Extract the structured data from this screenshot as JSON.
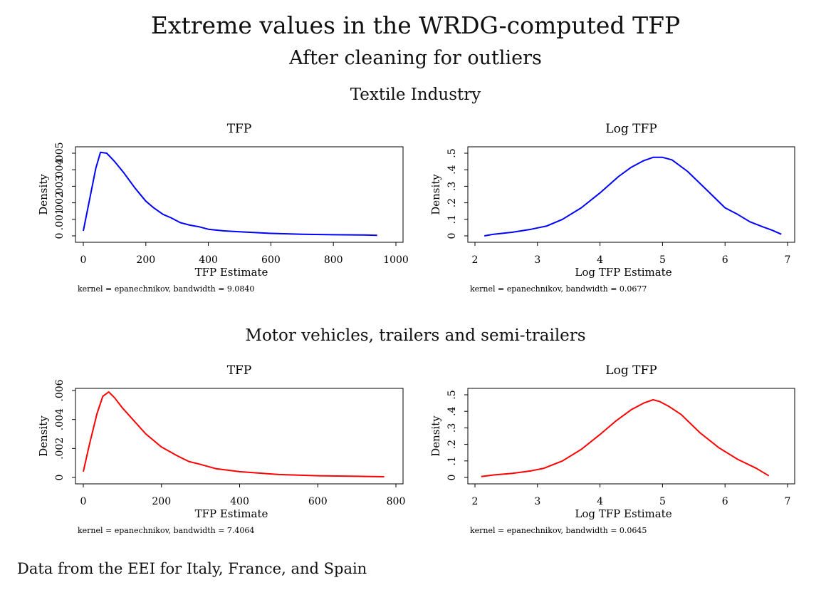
{
  "figure": {
    "title": "Extreme values in the WRDG-computed TFP",
    "subtitle": "After cleaning for outliers",
    "note": "Data from the EEI for Italy, France, and Spain"
  },
  "sections": [
    {
      "title": "Textile Industry"
    },
    {
      "title": "Motor vehicles, trailers and semi-trailers"
    }
  ],
  "chart_data": [
    {
      "type": "line",
      "section": "Textile Industry",
      "title": "TFP",
      "xlabel": "TFP Estimate",
      "ylabel": "Density",
      "note": "kernel = epanechnikov, bandwidth = 9.0840",
      "color": "#0000ff",
      "xlim": [
        0,
        1000
      ],
      "ylim": [
        0,
        0.005
      ],
      "xticks": [
        0,
        200,
        400,
        600,
        800,
        1000
      ],
      "xtick_labels": [
        "0",
        "200",
        "400",
        "600",
        "800",
        "1000"
      ],
      "yticks": [
        0,
        0.001,
        0.002,
        0.003,
        0.004,
        0.005
      ],
      "ytick_labels": [
        "0",
        ".001",
        ".002",
        ".003",
        ".004",
        ".005"
      ],
      "x": [
        0,
        40,
        55,
        75,
        100,
        130,
        165,
        200,
        225,
        255,
        280,
        310,
        340,
        370,
        400,
        450,
        500,
        550,
        600,
        700,
        800,
        900,
        940
      ],
      "y": [
        0.0003,
        0.0041,
        0.00505,
        0.005,
        0.0045,
        0.0038,
        0.0029,
        0.0021,
        0.0017,
        0.0013,
        0.0011,
        0.0008,
        0.00065,
        0.00055,
        0.0004,
        0.0003,
        0.00025,
        0.0002,
        0.00015,
        0.0001,
        7e-05,
        5e-05,
        3e-05
      ]
    },
    {
      "type": "line",
      "section": "Textile Industry",
      "title": "Log TFP",
      "xlabel": "Log TFP Estimate",
      "ylabel": "Density",
      "note": "kernel = epanechnikov, bandwidth = 0.0677",
      "color": "#0000ff",
      "xlim": [
        2,
        7
      ],
      "ylim": [
        0,
        0.5
      ],
      "xticks": [
        2,
        3,
        4,
        5,
        6,
        7
      ],
      "xtick_labels": [
        "2",
        "3",
        "4",
        "5",
        "6",
        "7"
      ],
      "yticks": [
        0,
        0.1,
        0.2,
        0.3,
        0.4,
        0.5
      ],
      "ytick_labels": [
        "0",
        ".1",
        ".2",
        ".3",
        ".4",
        ".5"
      ],
      "x": [
        2.15,
        2.3,
        2.6,
        2.9,
        3.15,
        3.4,
        3.7,
        4.0,
        4.3,
        4.5,
        4.7,
        4.85,
        5.0,
        5.15,
        5.4,
        5.7,
        6.0,
        6.2,
        6.4,
        6.6,
        6.75,
        6.9
      ],
      "y": [
        0.0,
        0.01,
        0.022,
        0.04,
        0.06,
        0.1,
        0.17,
        0.26,
        0.36,
        0.415,
        0.455,
        0.475,
        0.475,
        0.46,
        0.39,
        0.28,
        0.17,
        0.13,
        0.085,
        0.055,
        0.035,
        0.01
      ]
    },
    {
      "type": "line",
      "section": "Motor vehicles, trailers and semi-trailers",
      "title": "TFP",
      "xlabel": "TFP Estimate",
      "ylabel": "Density",
      "note": "kernel = epanechnikov, bandwidth = 7.4064",
      "color": "#ff0000",
      "xlim": [
        0,
        800
      ],
      "ylim": [
        0,
        0.006
      ],
      "xticks": [
        0,
        200,
        400,
        600,
        800
      ],
      "xtick_labels": [
        "0",
        "200",
        "400",
        "600",
        "800"
      ],
      "yticks": [
        0,
        0.002,
        0.004,
        0.006
      ],
      "ytick_labels": [
        "0",
        ".002",
        ".004",
        ".006"
      ],
      "x": [
        0,
        15,
        35,
        50,
        65,
        80,
        100,
        130,
        160,
        200,
        240,
        270,
        300,
        340,
        400,
        450,
        500,
        600,
        700,
        770
      ],
      "y": [
        0.0004,
        0.0022,
        0.0044,
        0.0056,
        0.0059,
        0.0055,
        0.0048,
        0.0039,
        0.003,
        0.0021,
        0.0015,
        0.0011,
        0.0009,
        0.0006,
        0.0004,
        0.0003,
        0.0002,
        0.00012,
        8e-05,
        5e-05
      ]
    },
    {
      "type": "line",
      "section": "Motor vehicles, trailers and semi-trailers",
      "title": "Log TFP",
      "xlabel": "Log TFP Estimate",
      "ylabel": "Density",
      "note": "kernel = epanechnikov, bandwidth = 0.0645",
      "color": "#ff0000",
      "xlim": [
        2,
        7
      ],
      "ylim": [
        0,
        0.5
      ],
      "xticks": [
        2,
        3,
        4,
        5,
        6,
        7
      ],
      "xtick_labels": [
        "2",
        "3",
        "4",
        "5",
        "6",
        "7"
      ],
      "yticks": [
        0,
        0.1,
        0.2,
        0.3,
        0.4,
        0.5
      ],
      "ytick_labels": [
        "0",
        ".1",
        ".2",
        ".3",
        ".4",
        ".5"
      ],
      "x": [
        2.1,
        2.3,
        2.6,
        2.9,
        3.1,
        3.4,
        3.7,
        4.0,
        4.25,
        4.5,
        4.7,
        4.85,
        4.95,
        5.1,
        5.3,
        5.6,
        5.9,
        6.2,
        6.5,
        6.7
      ],
      "y": [
        0.005,
        0.015,
        0.025,
        0.04,
        0.055,
        0.1,
        0.17,
        0.26,
        0.34,
        0.41,
        0.45,
        0.47,
        0.46,
        0.43,
        0.38,
        0.27,
        0.18,
        0.11,
        0.055,
        0.01
      ]
    }
  ]
}
